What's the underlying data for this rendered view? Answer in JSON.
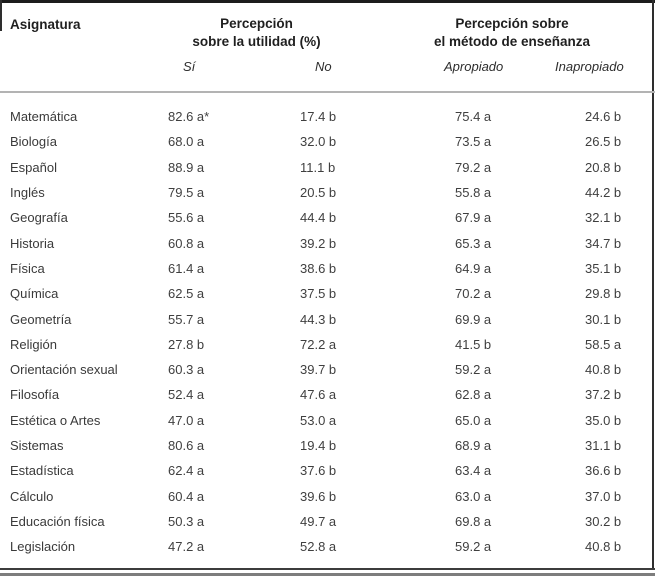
{
  "table": {
    "columns": {
      "subject": "Asignatura",
      "group_utility": {
        "line1": "Percepción",
        "line2": "sobre la utilidad (%)"
      },
      "group_method": {
        "line1": "Percepción sobre",
        "line2": "el método de enseñanza"
      },
      "sub": {
        "si": "Sí",
        "no": "No",
        "apropiado": "Apropiado",
        "inapropiado": "Inapropiado"
      }
    },
    "rows": [
      {
        "subject": "Matemática",
        "si": "82.6 a*",
        "no": "17.4 b",
        "apropiado": "75.4 a",
        "inapropiado": "24.6 b"
      },
      {
        "subject": "Biología",
        "si": "68.0 a",
        "no": "32.0 b",
        "apropiado": "73.5 a",
        "inapropiado": "26.5 b"
      },
      {
        "subject": "Español",
        "si": "88.9 a",
        "no": "11.1 b",
        "apropiado": "79.2 a",
        "inapropiado": "20.8 b"
      },
      {
        "subject": "Inglés",
        "si": "79.5 a",
        "no": "20.5 b",
        "apropiado": "55.8 a",
        "inapropiado": "44.2 b"
      },
      {
        "subject": "Geografía",
        "si": "55.6 a",
        "no": "44.4 b",
        "apropiado": "67.9 a",
        "inapropiado": "32.1 b"
      },
      {
        "subject": "Historia",
        "si": "60.8 a",
        "no": "39.2 b",
        "apropiado": "65.3 a",
        "inapropiado": "34.7 b"
      },
      {
        "subject": "Física",
        "si": "61.4 a",
        "no": "38.6 b",
        "apropiado": "64.9 a",
        "inapropiado": "35.1 b"
      },
      {
        "subject": "Química",
        "si": "62.5 a",
        "no": "37.5 b",
        "apropiado": "70.2 a",
        "inapropiado": "29.8 b"
      },
      {
        "subject": "Geometría",
        "si": "55.7 a",
        "no": "44.3 b",
        "apropiado": "69.9 a",
        "inapropiado": "30.1 b"
      },
      {
        "subject": "Religión",
        "si": "27.8 b",
        "no": "72.2 a",
        "apropiado": "41.5 b",
        "inapropiado": "58.5 a"
      },
      {
        "subject": "Orientación sexual",
        "si": "60.3 a",
        "no": "39.7 b",
        "apropiado": "59.2 a",
        "inapropiado": "40.8 b"
      },
      {
        "subject": "Filosofía",
        "si": "52.4 a",
        "no": "47.6 a",
        "apropiado": "62.8 a",
        "inapropiado": "37.2 b"
      },
      {
        "subject": "Estética o Artes",
        "si": "47.0 a",
        "no": "53.0 a",
        "apropiado": "65.0 a",
        "inapropiado": "35.0 b"
      },
      {
        "subject": "Sistemas",
        "si": "80.6 a",
        "no": "19.4 b",
        "apropiado": "68.9 a",
        "inapropiado": "31.1 b"
      },
      {
        "subject": "Estadística",
        "si": "62.4 a",
        "no": "37.6 b",
        "apropiado": "63.4 a",
        "inapropiado": "36.6 b"
      },
      {
        "subject": "Cálculo",
        "si": "60.4 a",
        "no": "39.6 b",
        "apropiado": "63.0 a",
        "inapropiado": "37.0 b"
      },
      {
        "subject": "Educación física",
        "si": "50.3 a",
        "no": "49.7 a",
        "apropiado": "69.8 a",
        "inapropiado": "30.2 b"
      },
      {
        "subject": "Legislación",
        "si": "47.2 a",
        "no": "52.8 a",
        "apropiado": "59.2 a",
        "inapropiado": "40.8 b"
      }
    ]
  },
  "colors": {
    "rule_dark": "#1c1c1c",
    "rule_light": "#b3b3b3",
    "bottom_thin": "#3c3c3c",
    "bottom_thick": "#7d7d7d",
    "text": "#3f3f3f"
  }
}
